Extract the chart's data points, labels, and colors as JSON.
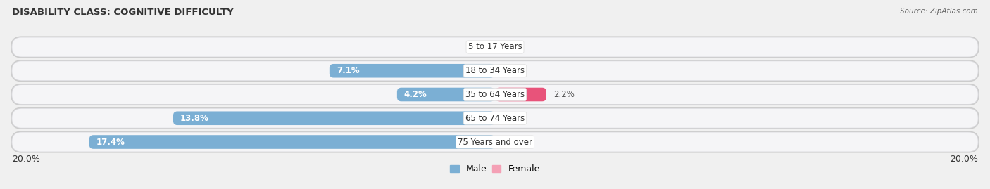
{
  "title": "DISABILITY CLASS: COGNITIVE DIFFICULTY",
  "source": "Source: ZipAtlas.com",
  "categories": [
    "5 to 17 Years",
    "18 to 34 Years",
    "35 to 64 Years",
    "65 to 74 Years",
    "75 Years and over"
  ],
  "male_values": [
    0.0,
    7.1,
    4.2,
    13.8,
    17.4
  ],
  "female_values": [
    0.0,
    0.0,
    2.2,
    0.0,
    0.0
  ],
  "max_value": 20.0,
  "male_color": "#7bafd4",
  "female_color_light": "#f4a0b5",
  "female_color_dark": "#e8537a",
  "bg_color": "#f0f0f0",
  "row_bg_color": "#e4e4e8",
  "row_inner_color": "#f8f8fa",
  "title_fontsize": 9.5,
  "label_fontsize": 8.5,
  "cat_fontsize": 8.5,
  "axis_label_fontsize": 9,
  "bar_height": 0.58,
  "xlim_ext": 0.8
}
